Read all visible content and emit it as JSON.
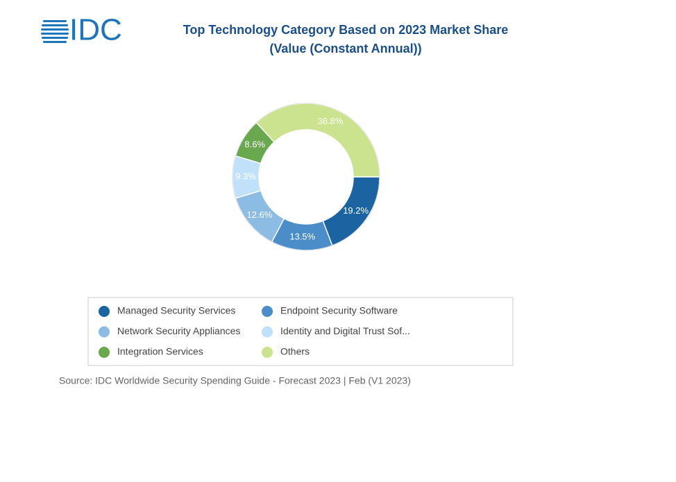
{
  "logo": "IDC",
  "chart_data": {
    "type": "donut",
    "title": "Top Technology Category Based on 2023 Market Share",
    "subtitle": "(Value (Constant Annual))",
    "categories": [
      "Managed Security Services",
      "Endpoint Security Software",
      "Network Security Appliances",
      "Identity and Digital Trust Sof...",
      "Integration Services",
      "Others"
    ],
    "values": [
      19.2,
      13.5,
      12.6,
      9.3,
      8.6,
      36.8
    ],
    "value_labels": [
      "19.2%",
      "13.5%",
      "12.6%",
      "9.3%",
      "8.6%",
      "36.8%"
    ],
    "colors": [
      "#1b64a1",
      "#4b8dc9",
      "#8cbce4",
      "#c0e1f9",
      "#6aa84f",
      "#cbe28f"
    ],
    "source": "Source: IDC Worldwide Security Spending Guide - Forecast 2023 | Feb (V1 2023)"
  }
}
